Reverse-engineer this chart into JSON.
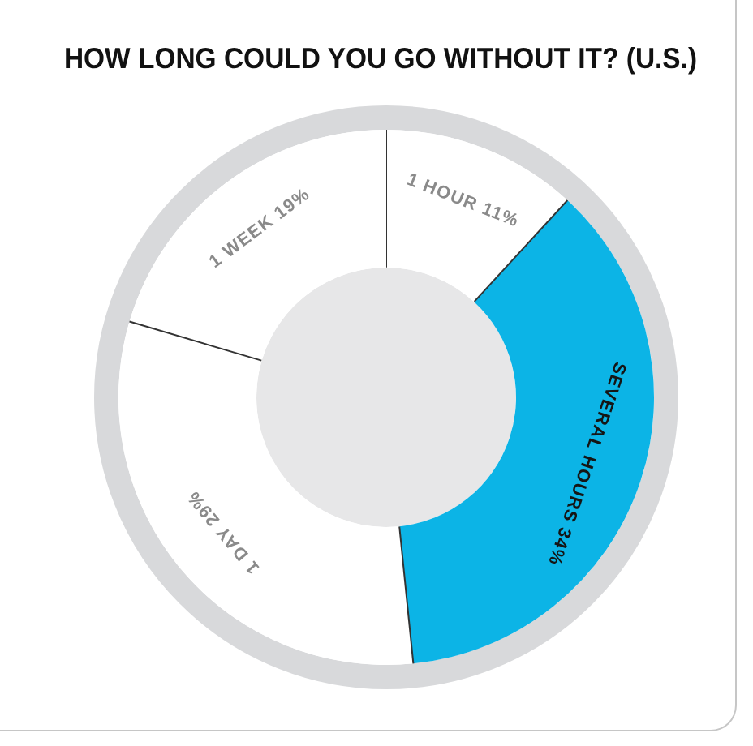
{
  "chart_data": {
    "type": "donut",
    "title": "HOW LONG COULD YOU GO WITHOUT IT? (U.S.)",
    "categories": [
      "1 HOUR",
      "SEVERAL HOURS",
      "1 DAY",
      "1 WEEK"
    ],
    "values": [
      11,
      34,
      29,
      19
    ],
    "colors": [
      "#ffffff",
      "#0cb4e6",
      "#ffffff",
      "#ffffff"
    ],
    "value_labels": [
      "11%",
      "34%",
      "29%",
      "19%"
    ]
  }
}
